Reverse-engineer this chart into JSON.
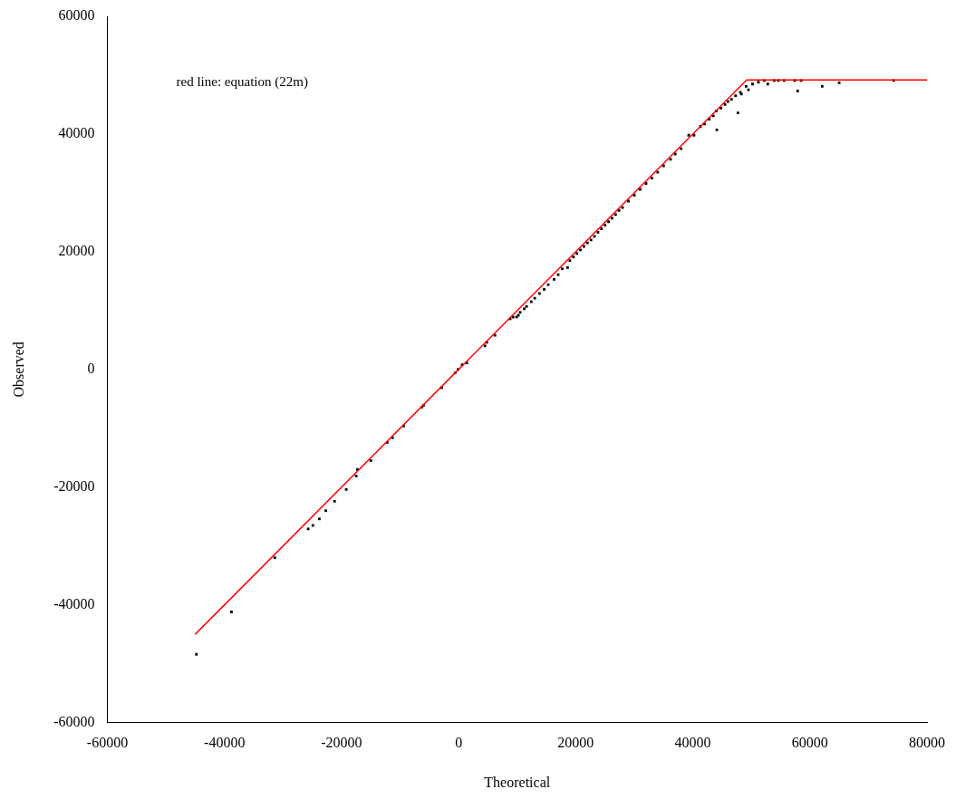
{
  "chart_data": {
    "type": "scatter",
    "xlabel": "Theoretical",
    "ylabel": "Observed",
    "xlim": [
      -60000,
      80000
    ],
    "xticks": [
      -60000,
      -40000,
      -20000,
      0,
      20000,
      40000,
      60000,
      80000
    ],
    "ylim": [
      -60000,
      60000
    ],
    "yticks": [
      -60000,
      -40000,
      -20000,
      0,
      20000,
      40000,
      60000
    ],
    "grid": false,
    "legend": false,
    "annotations": [
      "red line: equation (22m)"
    ],
    "series": [
      {
        "color": "#000000",
        "marker": "square",
        "x": [
          -44800,
          -38800,
          -31400,
          -25700,
          -24900,
          -23800,
          -22700,
          -21200,
          -19200,
          -17500,
          -17300,
          -15000,
          -12200,
          -11300,
          -9400,
          -6300,
          -6000,
          -2900,
          -600,
          -100,
          600,
          1400,
          4500,
          4800,
          6200,
          8800,
          9300,
          9900,
          10200,
          10500,
          11200,
          11600,
          12400,
          13000,
          13800,
          14600,
          15300,
          16300,
          17000,
          17700,
          18600,
          19000,
          19600,
          20200,
          20800,
          21400,
          22000,
          22600,
          23200,
          23800,
          24400,
          25000,
          25600,
          26200,
          26800,
          27400,
          28000,
          29000,
          30000,
          31000,
          32000,
          33000,
          34000,
          35000,
          36200,
          37000,
          38000,
          39300,
          40200,
          41300,
          42000,
          42800,
          43500,
          44000,
          44100,
          44800,
          45500,
          46000,
          46600,
          47300,
          47700,
          48100,
          48300,
          49100,
          49500,
          50200,
          51200,
          52200,
          52800,
          53900,
          54600,
          55600,
          57400,
          57900,
          58500,
          62100,
          65000,
          74300
        ],
        "values": [
          -48400,
          -41200,
          -32000,
          -27100,
          -26500,
          -25400,
          -24000,
          -22400,
          -20400,
          -18100,
          -17000,
          -15500,
          -12400,
          -11600,
          -9600,
          -6400,
          -6100,
          -3100,
          -600,
          0,
          800,
          1100,
          4000,
          4600,
          5800,
          8600,
          8900,
          8900,
          9200,
          9700,
          10300,
          10700,
          11500,
          12100,
          12900,
          13600,
          14400,
          15300,
          16100,
          17100,
          17300,
          18500,
          19100,
          19700,
          20300,
          20900,
          21500,
          22000,
          22600,
          23300,
          23900,
          24500,
          25100,
          25700,
          26300,
          27000,
          27500,
          28600,
          29600,
          30600,
          31600,
          32500,
          33500,
          34600,
          35700,
          36600,
          37500,
          39800,
          39800,
          41300,
          41700,
          42500,
          43100,
          43900,
          40700,
          44400,
          45000,
          45500,
          45900,
          46500,
          43600,
          47100,
          46800,
          48100,
          47500,
          48500,
          48800,
          49100,
          48500,
          49100,
          49100,
          49100,
          49100,
          47300,
          49100,
          48100,
          48700,
          49100
        ]
      },
      {
        "type": "line",
        "color": "#ff0000",
        "marker": "none",
        "x": [
          -45000,
          49200,
          80000
        ],
        "values": [
          -45000,
          49200,
          49200
        ]
      }
    ]
  }
}
